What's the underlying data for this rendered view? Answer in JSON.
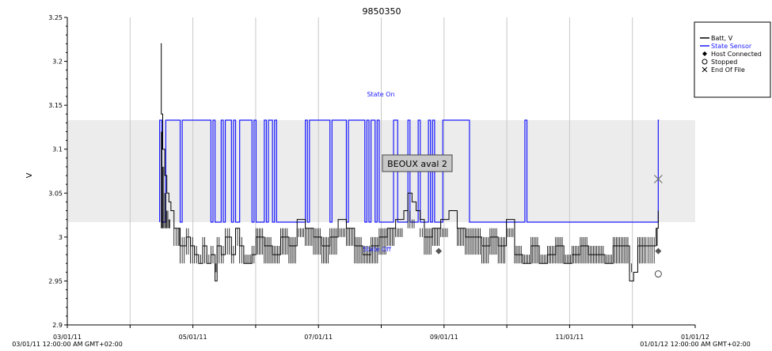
{
  "chart_data": {
    "type": "line",
    "title": "9850350",
    "ylabel": "V",
    "xlabel": "",
    "ylim": [
      2.9,
      3.25
    ],
    "y_ticks": [
      "2.9",
      "2.95",
      "3",
      "3.05",
      "3.1",
      "3.15",
      "3.2",
      "3.25"
    ],
    "x_ticks": [
      "03/01/11",
      "05/01/11",
      "07/01/11",
      "09/01/11",
      "11/01/11",
      "01/01/12"
    ],
    "x_range_labels": {
      "start": "03/01/11 12:00:00 AM GMT+02:00",
      "end": "01/01/12 12:00:00 AM GMT+02:00"
    },
    "x_domain_days": [
      0,
      306
    ],
    "grid": "vertical",
    "legend_position": "top-right",
    "legend": [
      {
        "label": "Batt, V",
        "symbol": "line",
        "color": "#000000"
      },
      {
        "label": "State Sensor",
        "symbol": "line",
        "color": "#1a1aff"
      },
      {
        "label": "Host Connected",
        "symbol": "diamond",
        "color": "#555555"
      },
      {
        "label": "Stopped",
        "symbol": "circle",
        "color": "#555555"
      },
      {
        "label": "End Of File",
        "symbol": "x",
        "color": "#555555"
      }
    ],
    "state_band": {
      "low": 3.017,
      "high": 3.133,
      "color": "#ececec"
    },
    "state_labels": {
      "on": "State On",
      "off": "State Off"
    },
    "annotation": "BEOUX aval 2",
    "series": [
      {
        "name": "Batt, V",
        "color": "#000000",
        "points": [
          [
            45.5,
            3.22
          ],
          [
            45.8,
            3.14
          ],
          [
            46.5,
            3.1
          ],
          [
            47.5,
            3.07
          ],
          [
            48.5,
            3.05
          ],
          [
            49.5,
            3.04
          ],
          [
            50.5,
            3.03
          ],
          [
            52,
            3.01
          ],
          [
            54,
            3.01
          ],
          [
            55,
            2.99
          ],
          [
            58,
            3.0
          ],
          [
            60,
            2.99
          ],
          [
            62,
            2.98
          ],
          [
            64,
            2.97
          ],
          [
            66,
            2.99
          ],
          [
            68,
            2.97
          ],
          [
            70,
            2.98
          ],
          [
            72,
            2.95
          ],
          [
            73,
            2.99
          ],
          [
            75,
            2.98
          ],
          [
            77,
            3.0
          ],
          [
            80,
            2.98
          ],
          [
            82,
            3.01
          ],
          [
            84,
            2.99
          ],
          [
            86,
            2.97
          ],
          [
            90,
            2.98
          ],
          [
            92,
            3.0
          ],
          [
            96,
            2.99
          ],
          [
            100,
            2.98
          ],
          [
            104,
            3.0
          ],
          [
            108,
            2.99
          ],
          [
            112,
            3.02
          ],
          [
            116,
            3.01
          ],
          [
            120,
            3.0
          ],
          [
            124,
            2.99
          ],
          [
            128,
            3.0
          ],
          [
            132,
            3.02
          ],
          [
            136,
            3.01
          ],
          [
            140,
            2.99
          ],
          [
            144,
            2.98
          ],
          [
            148,
            2.99
          ],
          [
            152,
            3.0
          ],
          [
            156,
            3.01
          ],
          [
            160,
            3.02
          ],
          [
            164,
            3.03
          ],
          [
            166,
            3.05
          ],
          [
            168,
            3.04
          ],
          [
            170,
            3.03
          ],
          [
            172,
            3.02
          ],
          [
            174,
            3.0
          ],
          [
            178,
            3.01
          ],
          [
            182,
            3.02
          ],
          [
            186,
            3.03
          ],
          [
            190,
            3.01
          ],
          [
            194,
            3.0
          ],
          [
            198,
            3.0
          ],
          [
            202,
            2.99
          ],
          [
            206,
            3.0
          ],
          [
            210,
            2.99
          ],
          [
            214,
            3.02
          ],
          [
            218,
            2.98
          ],
          [
            222,
            2.97
          ],
          [
            226,
            2.99
          ],
          [
            230,
            2.97
          ],
          [
            234,
            2.98
          ],
          [
            238,
            2.99
          ],
          [
            242,
            2.97
          ],
          [
            246,
            2.98
          ],
          [
            250,
            2.99
          ],
          [
            254,
            2.98
          ],
          [
            258,
            2.98
          ],
          [
            262,
            2.97
          ],
          [
            266,
            2.99
          ],
          [
            270,
            2.99
          ],
          [
            274,
            2.95
          ],
          [
            276,
            2.96
          ],
          [
            278,
            2.99
          ],
          [
            282,
            2.99
          ],
          [
            285,
            2.99
          ],
          [
            287,
            3.01
          ],
          [
            288,
            3.03
          ]
        ]
      },
      {
        "name": "State Sensor",
        "color": "#1a1aff",
        "step_times": [
          45,
          46,
          48,
          55,
          56,
          70,
          71,
          72,
          75,
          76,
          77,
          80,
          81,
          82,
          84,
          90,
          91,
          92,
          96,
          97,
          98,
          100,
          101,
          102,
          116,
          117,
          118,
          128,
          129,
          136,
          137,
          145,
          146,
          147,
          148,
          150,
          151,
          152,
          159,
          161,
          166,
          167,
          171,
          172,
          176,
          177,
          178,
          179,
          183,
          196,
          223,
          224,
          288
        ],
        "start_state": "on"
      }
    ],
    "markers": [
      {
        "type": "diamond",
        "x": 181,
        "y": 2.984
      },
      {
        "type": "diamond",
        "x": 288,
        "y": 2.984
      },
      {
        "type": "circle",
        "x": 288,
        "y": 2.958
      },
      {
        "type": "x",
        "x": 288,
        "y": 3.066
      }
    ]
  }
}
